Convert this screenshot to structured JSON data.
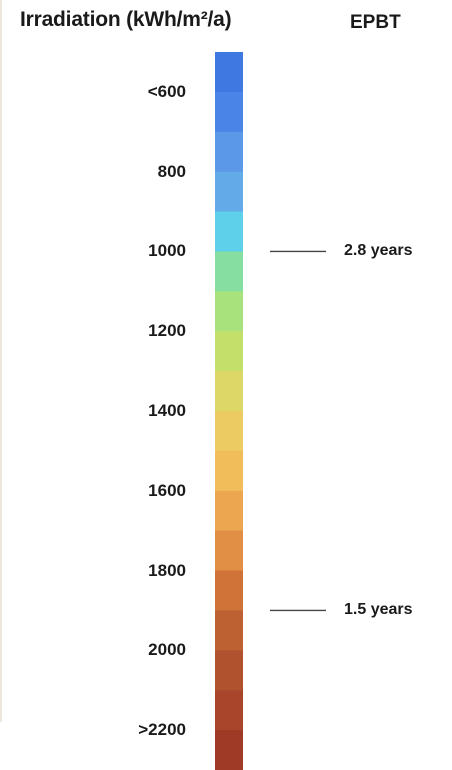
{
  "chart_data": {
    "type": "heatmap",
    "title": "Irradiation (kWh/m²/a)",
    "secondary_title": "EPBT",
    "scale_min": 500,
    "scale_max": 2300,
    "tick_labels": [
      {
        "value": 600,
        "label": "<600"
      },
      {
        "value": 800,
        "label": "800"
      },
      {
        "value": 1000,
        "label": "1000"
      },
      {
        "value": 1200,
        "label": "1200"
      },
      {
        "value": 1400,
        "label": "1400"
      },
      {
        "value": 1600,
        "label": "1600"
      },
      {
        "value": 1800,
        "label": "1800"
      },
      {
        "value": 2000,
        "label": "2000"
      },
      {
        "value": 2200,
        "label": ">2200"
      }
    ],
    "color_bins": [
      {
        "from": 500,
        "to": 600,
        "color": "#3f78e0"
      },
      {
        "from": 600,
        "to": 700,
        "color": "#4a84e6"
      },
      {
        "from": 700,
        "to": 800,
        "color": "#5c98e8"
      },
      {
        "from": 800,
        "to": 900,
        "color": "#62abe8"
      },
      {
        "from": 900,
        "to": 1000,
        "color": "#5fd0ea"
      },
      {
        "from": 1000,
        "to": 1100,
        "color": "#86dfa0"
      },
      {
        "from": 1100,
        "to": 1200,
        "color": "#a8e27c"
      },
      {
        "from": 1200,
        "to": 1300,
        "color": "#c4e06a"
      },
      {
        "from": 1300,
        "to": 1400,
        "color": "#dcd766"
      },
      {
        "from": 1400,
        "to": 1500,
        "color": "#eccc62"
      },
      {
        "from": 1500,
        "to": 1600,
        "color": "#f0bd5a"
      },
      {
        "from": 1600,
        "to": 1700,
        "color": "#eda650"
      },
      {
        "from": 1700,
        "to": 1800,
        "color": "#e08f44"
      },
      {
        "from": 1800,
        "to": 1900,
        "color": "#cf7338"
      },
      {
        "from": 1900,
        "to": 2000,
        "color": "#bd6032"
      },
      {
        "from": 2000,
        "to": 2100,
        "color": "#b0522e"
      },
      {
        "from": 2100,
        "to": 2200,
        "color": "#a8452a"
      },
      {
        "from": 2200,
        "to": 2300,
        "color": "#9e3a25"
      }
    ],
    "annotations": [
      {
        "value": 1000,
        "label": "2.8 years"
      },
      {
        "value": 1900,
        "label": "1.5 years"
      }
    ]
  }
}
